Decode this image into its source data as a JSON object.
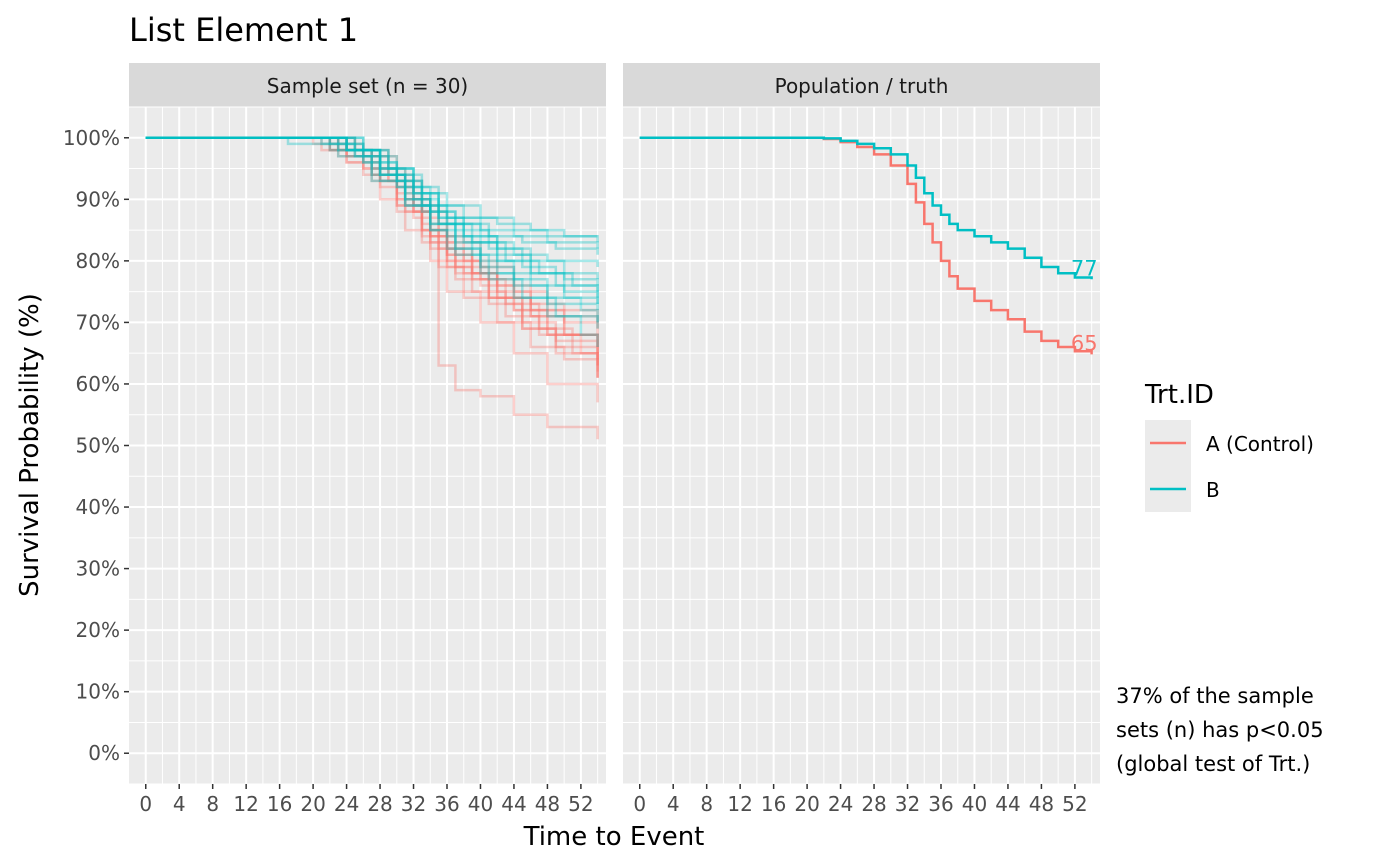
{
  "chart_data": {
    "type": "line",
    "title": "List Element 1",
    "xlabel": "Time to Event",
    "ylabel": "Survival Probability (%)",
    "xlim": [
      -2,
      55
    ],
    "ylim": [
      -5,
      105
    ],
    "x_ticks": [
      "0",
      "4",
      "8",
      "12",
      "16",
      "20",
      "24",
      "28",
      "32",
      "36",
      "40",
      "44",
      "48",
      "52"
    ],
    "y_ticks": [
      "0%",
      "10%",
      "20%",
      "30%",
      "40%",
      "50%",
      "60%",
      "70%",
      "80%",
      "90%",
      "100%"
    ],
    "grid": true,
    "legend": {
      "title": "Trt.ID",
      "position": "right",
      "entries": [
        {
          "label": "A (Control)",
          "color": "#F8766D"
        },
        {
          "label": "B",
          "color": "#00BFC4"
        }
      ]
    },
    "caption_lines": [
      "37% of the sample",
      "sets (n) has p<0.05",
      "(global test of Trt.)"
    ],
    "panels": [
      {
        "strip": "Sample set (n = 30)",
        "series": [
          {
            "group": "A (Control)",
            "x": [
              0,
              22,
              26,
              30,
              32,
              34,
              36,
              40,
              44,
              48,
              54
            ],
            "y": [
              100,
              99,
              97,
              92,
              88,
              84,
              80,
              77,
              72,
              68,
              64
            ]
          },
          {
            "group": "A (Control)",
            "x": [
              0,
              20,
              24,
              28,
              30,
              33,
              36,
              39,
              42,
              46,
              50,
              54
            ],
            "y": [
              100,
              99,
              96,
              93,
              89,
              85,
              81,
              78,
              75,
              72,
              70,
              68
            ]
          },
          {
            "group": "A (Control)",
            "x": [
              0,
              23,
              27,
              31,
              34,
              35,
              37,
              40,
              44,
              48,
              54
            ],
            "y": [
              100,
              98,
              95,
              90,
              85,
              63,
              59,
              58,
              55,
              53,
              51
            ]
          },
          {
            "group": "A (Control)",
            "x": [
              0,
              24,
              28,
              31,
              34,
              37,
              41,
              45,
              49,
              54
            ],
            "y": [
              100,
              97,
              93,
              88,
              82,
              77,
              73,
              69,
              66,
              62
            ]
          },
          {
            "group": "A (Control)",
            "x": [
              0,
              22,
              26,
              30,
              33,
              35,
              38,
              42,
              46,
              50,
              54
            ],
            "y": [
              100,
              98,
              94,
              89,
              84,
              79,
              74,
              70,
              66,
              64,
              61
            ]
          },
          {
            "group": "A (Control)",
            "x": [
              0,
              25,
              29,
              32,
              34,
              36,
              39,
              43,
              47,
              52,
              54
            ],
            "y": [
              100,
              98,
              93,
              88,
              83,
              79,
              75,
              71,
              68,
              65,
              63
            ]
          },
          {
            "group": "A (Control)",
            "x": [
              0,
              21,
              26,
              30,
              33,
              36,
              40,
              44,
              48,
              54
            ],
            "y": [
              100,
              98,
              95,
              90,
              85,
              80,
              76,
              72,
              68,
              66
            ]
          },
          {
            "group": "A (Control)",
            "x": [
              0,
              24,
              28,
              32,
              35,
              38,
              42,
              46,
              50,
              54
            ],
            "y": [
              100,
              97,
              92,
              87,
              82,
              78,
              74,
              71,
              68,
              65
            ]
          },
          {
            "group": "A (Control)",
            "x": [
              0,
              23,
              27,
              31,
              34,
              37,
              41,
              45,
              49,
              54
            ],
            "y": [
              100,
              98,
              94,
              89,
              84,
              79,
              74,
              69,
              65,
              61
            ]
          },
          {
            "group": "A (Control)",
            "x": [
              0,
              22,
              27,
              31,
              34,
              36,
              39,
              43,
              47,
              51,
              54
            ],
            "y": [
              100,
              98,
              94,
              90,
              85,
              81,
              77,
              73,
              69,
              65,
              61
            ]
          },
          {
            "group": "A (Control)",
            "x": [
              0,
              25,
              29,
              33,
              36,
              40,
              44,
              48,
              54
            ],
            "y": [
              100,
              97,
              93,
              88,
              83,
              79,
              75,
              72,
              70
            ]
          },
          {
            "group": "A (Control)",
            "x": [
              0,
              24,
              28,
              31,
              34,
              36,
              40,
              44,
              48,
              54
            ],
            "y": [
              100,
              96,
              90,
              85,
              80,
              75,
              70,
              65,
              60,
              57
            ]
          },
          {
            "group": "A (Control)",
            "x": [
              0,
              22,
              26,
              30,
              33,
              36,
              39,
              42,
              46,
              50,
              54
            ],
            "y": [
              100,
              98,
              95,
              91,
              86,
              82,
              78,
              74,
              71,
              68,
              66
            ]
          },
          {
            "group": "A (Control)",
            "x": [
              0,
              24,
              28,
              32,
              35,
              38,
              42,
              46,
              50,
              54
            ],
            "y": [
              100,
              98,
              94,
              89,
              84,
              80,
              76,
              73,
              71,
              69
            ]
          },
          {
            "group": "A (Control)",
            "x": [
              0,
              23,
              27,
              30,
              33,
              37,
              41,
              45,
              49,
              54
            ],
            "y": [
              100,
              97,
              93,
              88,
              83,
              78,
              74,
              70,
              67,
              63
            ]
          },
          {
            "group": "B",
            "x": [
              0,
              24,
              28,
              32,
              35,
              38,
              42,
              46,
              50,
              54
            ],
            "y": [
              100,
              98,
              95,
              91,
              87,
              84,
              82,
              80,
              78,
              77
            ]
          },
          {
            "group": "B",
            "x": [
              0,
              22,
              26,
              30,
              34,
              37,
              41,
              45,
              49,
              54
            ],
            "y": [
              100,
              99,
              96,
              92,
              88,
              86,
              84,
              83,
              82,
              81
            ]
          },
          {
            "group": "B",
            "x": [
              0,
              26,
              29,
              32,
              35,
              38,
              42,
              46,
              50,
              54
            ],
            "y": [
              100,
              98,
              95,
              91,
              87,
              84,
              81,
              78,
              75,
              73
            ]
          },
          {
            "group": "B",
            "x": [
              0,
              17,
              25,
              29,
              33,
              36,
              40,
              44,
              48,
              54
            ],
            "y": [
              100,
              99,
              97,
              94,
              91,
              89,
              87,
              85,
              84,
              83
            ]
          },
          {
            "group": "B",
            "x": [
              0,
              24,
              28,
              31,
              34,
              37,
              40,
              44,
              48,
              52,
              54
            ],
            "y": [
              100,
              98,
              94,
              90,
              86,
              83,
              80,
              77,
              74,
              72,
              70
            ]
          },
          {
            "group": "B",
            "x": [
              0,
              25,
              28,
              32,
              35,
              39,
              43,
              47,
              51,
              54
            ],
            "y": [
              100,
              97,
              93,
              89,
              86,
              83,
              80,
              78,
              76,
              75
            ]
          },
          {
            "group": "B",
            "x": [
              0,
              23,
              27,
              30,
              33,
              36,
              40,
              44,
              48,
              54
            ],
            "y": [
              100,
              98,
              95,
              92,
              89,
              87,
              85,
              84,
              83,
              82
            ]
          },
          {
            "group": "B",
            "x": [
              0,
              26,
              30,
              33,
              36,
              39,
              42,
              46,
              50,
              54
            ],
            "y": [
              100,
              97,
              93,
              88,
              84,
              81,
              78,
              76,
              74,
              73
            ]
          },
          {
            "group": "B",
            "x": [
              0,
              24,
              28,
              31,
              34,
              37,
              41,
              45,
              49,
              54
            ],
            "y": [
              100,
              98,
              95,
              91,
              88,
              85,
              82,
              79,
              76,
              74
            ]
          },
          {
            "group": "B",
            "x": [
              0,
              22,
              27,
              31,
              34,
              37,
              40,
              44,
              48,
              52,
              54
            ],
            "y": [
              100,
              98,
              94,
              90,
              86,
              82,
              78,
              74,
              71,
              68,
              66
            ]
          },
          {
            "group": "B",
            "x": [
              0,
              25,
              29,
              32,
              35,
              38,
              42,
              46,
              50,
              54
            ],
            "y": [
              100,
              98,
              95,
              92,
              89,
              87,
              86,
              85,
              84,
              84
            ]
          },
          {
            "group": "B",
            "x": [
              0,
              23,
              27,
              31,
              34,
              36,
              40,
              44,
              48,
              54
            ],
            "y": [
              100,
              97,
              93,
              89,
              85,
              82,
              79,
              76,
              73,
              72
            ]
          },
          {
            "group": "B",
            "x": [
              0,
              24,
              28,
              32,
              35,
              38,
              42,
              46,
              50,
              54
            ],
            "y": [
              100,
              98,
              94,
              90,
              86,
              83,
              80,
              78,
              77,
              76
            ]
          },
          {
            "group": "B",
            "x": [
              0,
              21,
              26,
              30,
              33,
              36,
              40,
              44,
              48,
              54
            ],
            "y": [
              100,
              99,
              96,
              93,
              89,
              86,
              83,
              81,
              80,
              79
            ]
          },
          {
            "group": "B",
            "x": [
              0,
              24,
              28,
              31,
              34,
              37,
              41,
              45,
              49,
              54
            ],
            "y": [
              100,
              98,
              94,
              89,
              85,
              81,
              77,
              74,
              71,
              69
            ]
          }
        ]
      },
      {
        "strip": "Population / truth",
        "series": [
          {
            "group": "A (Control)",
            "end_label": "65",
            "x": [
              0,
              20,
              22,
              24,
              26,
              28,
              30,
              32,
              33,
              34,
              35,
              36,
              37,
              38,
              40,
              42,
              44,
              46,
              48,
              50,
              52,
              54
            ],
            "y": [
              100,
              100,
              99.8,
              99.3,
              98.5,
              97.3,
              95.5,
              92.5,
              89.5,
              86,
              83,
              80,
              77.5,
              75.5,
              73.5,
              72,
              70.5,
              68.5,
              67,
              66,
              65.3,
              64.8
            ]
          },
          {
            "group": "B",
            "end_label": "77",
            "x": [
              0,
              20,
              22,
              24,
              26,
              28,
              30,
              32,
              33,
              34,
              35,
              36,
              37,
              38,
              40,
              42,
              44,
              46,
              48,
              50,
              52,
              54
            ],
            "y": [
              100,
              100,
              99.9,
              99.5,
              99,
              98.3,
              97.3,
              95.5,
              93.5,
              91,
              89,
              87.5,
              86,
              85,
              84,
              83,
              82,
              80.5,
              79,
              78,
              77.3,
              77
            ]
          }
        ]
      }
    ]
  }
}
